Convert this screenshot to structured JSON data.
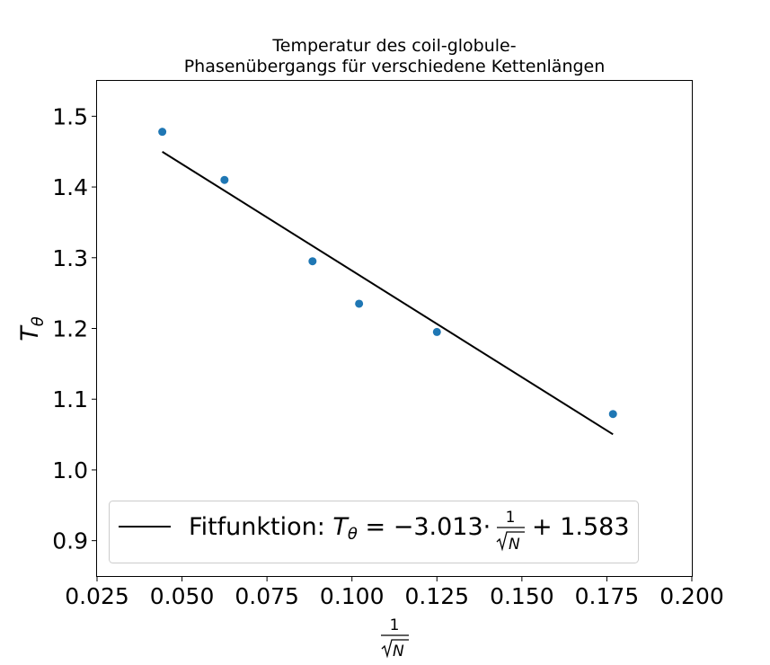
{
  "chart_data": {
    "type": "scatter",
    "title_lines": [
      "Temperatur des coil-globule-",
      "Phasenübergangs für verschiedene Kettenlängen"
    ],
    "xlabel": {
      "numerator": "1",
      "denominator": "N"
    },
    "ylabel": {
      "base": "T",
      "sub": "θ"
    },
    "xlim": [
      0.025,
      0.2
    ],
    "ylim": [
      0.85,
      1.55
    ],
    "xticks": [
      0.025,
      0.05,
      0.075,
      0.1,
      0.125,
      0.15,
      0.175,
      0.2
    ],
    "xtick_labels": [
      "0.025",
      "0.050",
      "0.075",
      "0.100",
      "0.125",
      "0.150",
      "0.175",
      "0.200"
    ],
    "yticks": [
      0.9,
      1.0,
      1.1,
      1.2,
      1.3,
      1.4,
      1.5
    ],
    "ytick_labels": [
      "0.9",
      "1.0",
      "1.1",
      "1.2",
      "1.3",
      "1.4",
      "1.5"
    ],
    "grid": false,
    "legend_placement": "lower-left",
    "series": [
      {
        "kind": "scatter",
        "color": "#1f77b4",
        "x": [
          0.0442,
          0.0625,
          0.0884,
          0.1021,
          0.125,
          0.1768
        ],
        "y": [
          1.478,
          1.41,
          1.295,
          1.235,
          1.195,
          1.079
        ]
      },
      {
        "kind": "line",
        "name": "Fitfunktion",
        "color": "#000000",
        "slope": -3.013,
        "intercept": 1.583,
        "x_range": [
          0.0442,
          0.1768
        ]
      }
    ],
    "legend": {
      "prefix": "Fitfunktion: ",
      "lhs_base": "T",
      "lhs_sub": "θ",
      "middle": " = −3.013·",
      "frac_num": "1",
      "frac_den": "N",
      "suffix": " + 1.583"
    }
  }
}
